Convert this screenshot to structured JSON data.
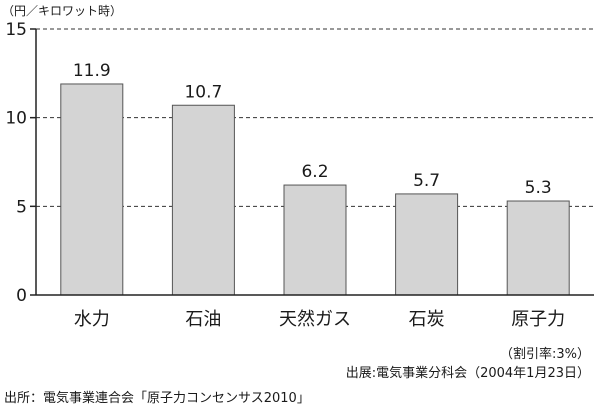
{
  "chart_data": {
    "type": "bar",
    "unit_label": "（円／キロワット時）",
    "categories": [
      "水力",
      "石油",
      "天然ガス",
      "石炭",
      "原子力"
    ],
    "values": [
      11.9,
      10.7,
      6.2,
      5.7,
      5.3
    ],
    "value_labels": [
      "11.9",
      "10.7",
      "6.2",
      "5.7",
      "5.3"
    ],
    "ylim": [
      0,
      15
    ],
    "yticks": [
      0,
      5,
      10,
      15
    ],
    "grid": true,
    "grid_style": "dashed",
    "bar_color": "#d4d4d4",
    "bar_stroke": "#555555",
    "title": "",
    "xlabel": "",
    "ylabel": ""
  },
  "notes": {
    "rate": "（割引率:3%）",
    "source": "出展:電気事業分科会（2004年1月23日）",
    "origin": "出所：電気事業連合会「原子力コンセンサス2010」"
  }
}
